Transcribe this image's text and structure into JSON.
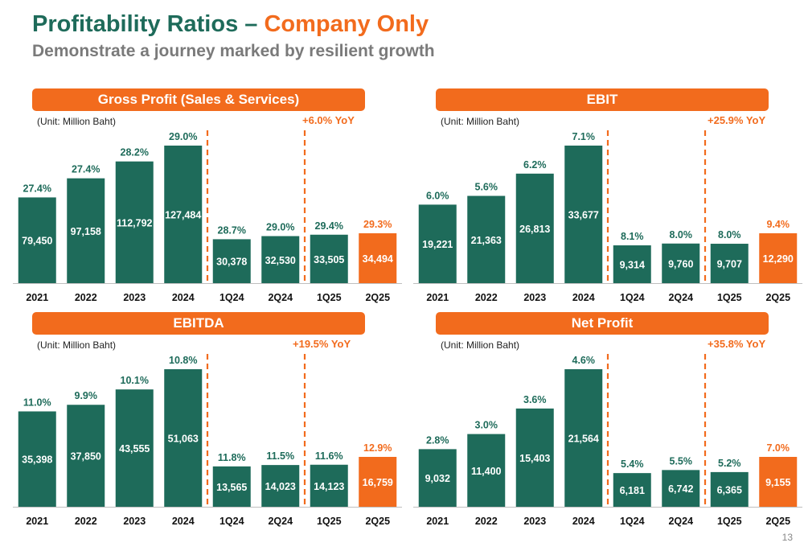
{
  "page": {
    "title_part1": "Profitability Ratios – ",
    "title_part2": "Company Only",
    "subtitle": "Demonstrate a journey marked by resilient growth",
    "page_number": "13"
  },
  "colors": {
    "green": "#1e6b5a",
    "orange": "#f26b1d",
    "label_green": "#1e6b5a"
  },
  "chart_data": [
    {
      "type": "bar",
      "title": "Gross Profit (Sales & Services)",
      "unit": "(Unit:  Million Baht)",
      "yoy": "+6.0% YoY",
      "categories": [
        "2021",
        "2022",
        "2023",
        "2024",
        "1Q24",
        "2Q24",
        "1Q25",
        "2Q25"
      ],
      "values": [
        79450,
        97158,
        112792,
        127484,
        30378,
        32530,
        33505,
        34494
      ],
      "value_labels": [
        "79,450",
        "97,158",
        "112,792",
        "127,484",
        "30,378",
        "32,530",
        "33,505",
        "34,494"
      ],
      "margins": [
        "27.4%",
        "27.4%",
        "28.2%",
        "29.0%",
        "28.7%",
        "29.0%",
        "29.4%",
        "29.3%"
      ],
      "highlight_index": 7
    },
    {
      "type": "bar",
      "title": "EBIT",
      "unit": "(Unit:  Million Baht)",
      "yoy": "+25.9% YoY",
      "categories": [
        "2021",
        "2022",
        "2023",
        "2024",
        "1Q24",
        "2Q24",
        "1Q25",
        "2Q25"
      ],
      "values": [
        19221,
        21363,
        26813,
        33677,
        9314,
        9760,
        9707,
        12290
      ],
      "value_labels": [
        "19,221",
        "21,363",
        "26,813",
        "33,677",
        "9,314",
        "9,760",
        "9,707",
        "12,290"
      ],
      "margins": [
        "6.0%",
        "5.6%",
        "6.2%",
        "7.1%",
        "8.1%",
        "8.0%",
        "8.0%",
        "9.4%"
      ],
      "highlight_index": 7
    },
    {
      "type": "bar",
      "title": "EBITDA",
      "unit": "(Unit:  Million Baht)",
      "yoy": "+19.5% YoY",
      "categories": [
        "2021",
        "2022",
        "2023",
        "2024",
        "1Q24",
        "2Q24",
        "1Q25",
        "2Q25"
      ],
      "values": [
        35398,
        37850,
        43555,
        51063,
        13565,
        14023,
        14123,
        16759
      ],
      "value_labels": [
        "35,398",
        "37,850",
        "43,555",
        "51,063",
        "13,565",
        "14,023",
        "14,123",
        "16,759"
      ],
      "margins": [
        "11.0%",
        "9.9%",
        "10.1%",
        "10.8%",
        "11.8%",
        "11.5%",
        "11.6%",
        "12.9%"
      ],
      "highlight_index": 7
    },
    {
      "type": "bar",
      "title": "Net Profit",
      "unit": "(Unit:  Million Baht)",
      "yoy": "+35.8% YoY",
      "categories": [
        "2021",
        "2022",
        "2023",
        "2024",
        "1Q24",
        "2Q24",
        "1Q25",
        "2Q25"
      ],
      "values": [
        9032,
        11400,
        15403,
        21564,
        6181,
        6742,
        6365,
        9155
      ],
      "value_labels": [
        "9,032",
        "11,400",
        "15,403",
        "21,564",
        "6,181",
        "6,742",
        "6,365",
        "9,155"
      ],
      "margins": [
        "2.8%",
        "3.0%",
        "3.6%",
        "4.6%",
        "5.4%",
        "5.5%",
        "5.2%",
        "7.0%"
      ],
      "highlight_index": 7
    }
  ]
}
